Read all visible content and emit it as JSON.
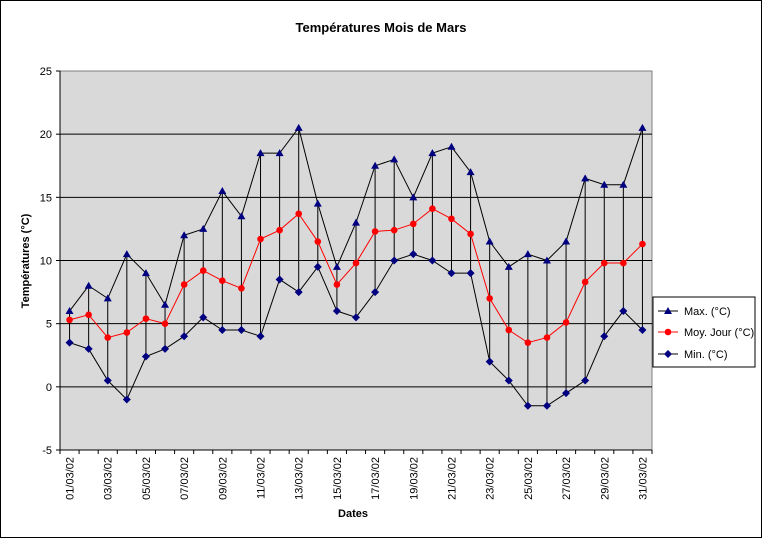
{
  "chart_data": {
    "type": "line",
    "title": "Températures Mois de Mars",
    "xlabel": "Dates",
    "ylabel": "Températures (°C)",
    "ylim": [
      -5,
      25
    ],
    "yticks": [
      -5,
      0,
      5,
      10,
      15,
      20,
      25
    ],
    "grid": true,
    "legend_position": "right",
    "plot_background": "#d9d9d9",
    "x": [
      "01/03/02",
      "02/03/02",
      "03/03/02",
      "04/03/02",
      "05/03/02",
      "06/03/02",
      "07/03/02",
      "08/03/02",
      "09/03/02",
      "10/03/02",
      "11/03/02",
      "12/03/02",
      "13/03/02",
      "14/03/02",
      "15/03/02",
      "16/03/02",
      "17/03/02",
      "18/03/02",
      "19/03/02",
      "20/03/02",
      "21/03/02",
      "22/03/02",
      "23/03/02",
      "24/03/02",
      "25/03/02",
      "26/03/02",
      "27/03/02",
      "28/03/02",
      "29/03/02",
      "30/03/02",
      "31/03/02"
    ],
    "x_tick_labels_shown": [
      "01/03/02",
      "",
      "03/03/02",
      "",
      "05/03/02",
      "",
      "07/03/02",
      "",
      "09/03/02",
      "",
      "11/03/02",
      "",
      "13/03/02",
      "",
      "15/03/02",
      "",
      "17/03/02",
      "",
      "19/03/02",
      "",
      "21/03/02",
      "",
      "23/03/02",
      "",
      "25/03/02",
      "",
      "27/03/02",
      "",
      "29/03/02",
      "",
      "31/03/02"
    ],
    "drop_lines": true,
    "series": [
      {
        "name": "Max. (°C)",
        "marker": "triangle",
        "color": "#000080",
        "line_color": "#000000",
        "values": [
          6,
          8,
          7,
          10.5,
          9,
          6.5,
          12,
          12.5,
          15.5,
          13.5,
          18.5,
          18.5,
          20.5,
          14.5,
          9.5,
          13,
          17.5,
          18,
          15,
          18.5,
          19,
          17,
          11.5,
          9.5,
          10.5,
          10,
          11.5,
          16.5,
          16,
          16,
          20.5
        ]
      },
      {
        "name": "Moy. Jour (°C)",
        "marker": "circle",
        "color": "#ff0000",
        "line_color": "#ff0000",
        "values": [
          5.3,
          5.7,
          3.9,
          4.3,
          5.4,
          5,
          8.1,
          9.2,
          8.4,
          7.8,
          11.7,
          12.4,
          13.7,
          11.5,
          8.1,
          9.8,
          12.3,
          12.4,
          12.9,
          14.1,
          13.3,
          12.1,
          7,
          4.5,
          3.5,
          3.9,
          5.1,
          8.3,
          9.8,
          9.8,
          11.3
        ]
      },
      {
        "name": "Min. (°C)",
        "marker": "diamond",
        "color": "#000080",
        "line_color": "#000000",
        "values": [
          3.5,
          3,
          0.5,
          -1,
          2.4,
          3,
          4,
          5.5,
          4.5,
          4.5,
          4,
          8.5,
          7.5,
          9.5,
          6,
          5.5,
          7.5,
          10,
          10.5,
          10,
          9,
          9,
          2,
          0.5,
          -1.5,
          -1.5,
          -0.5,
          0.5,
          4,
          6,
          4.5
        ]
      }
    ]
  }
}
